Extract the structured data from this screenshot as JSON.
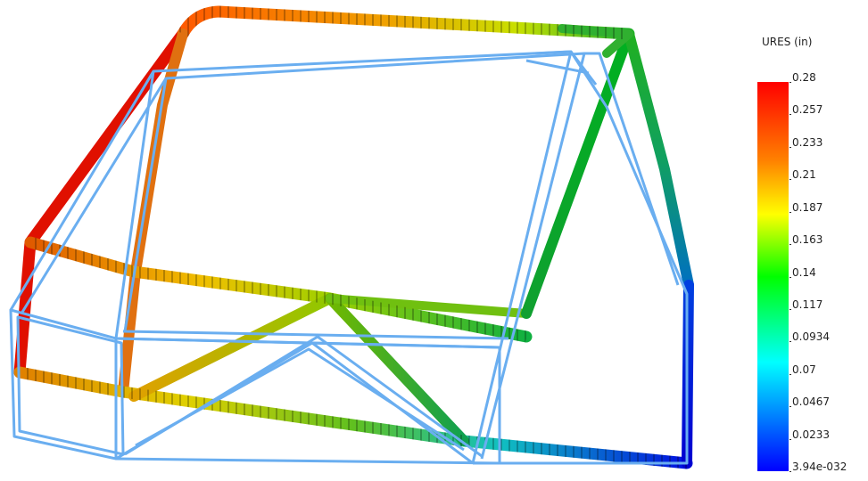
{
  "colors": {
    "undeformed_wireframe": "#6aaef0",
    "contour_max": "#ff0000",
    "contour_min": "#0000ff"
  },
  "legend": {
    "title": "URES (in)",
    "ticks": [
      {
        "value": 0.28,
        "label": "0.28"
      },
      {
        "value": 0.257,
        "label": "0.257"
      },
      {
        "value": 0.233,
        "label": "0.233"
      },
      {
        "value": 0.21,
        "label": "0.21"
      },
      {
        "value": 0.187,
        "label": "0.187"
      },
      {
        "value": 0.163,
        "label": "0.163"
      },
      {
        "value": 0.14,
        "label": "0.14"
      },
      {
        "value": 0.117,
        "label": "0.117"
      },
      {
        "value": 0.0934,
        "label": "0.0934"
      },
      {
        "value": 0.07,
        "label": "0.07"
      },
      {
        "value": 0.0467,
        "label": "0.0467"
      },
      {
        "value": 0.0233,
        "label": "0.0233"
      },
      {
        "value": 0.0,
        "label": "3.94e-032"
      }
    ]
  }
}
